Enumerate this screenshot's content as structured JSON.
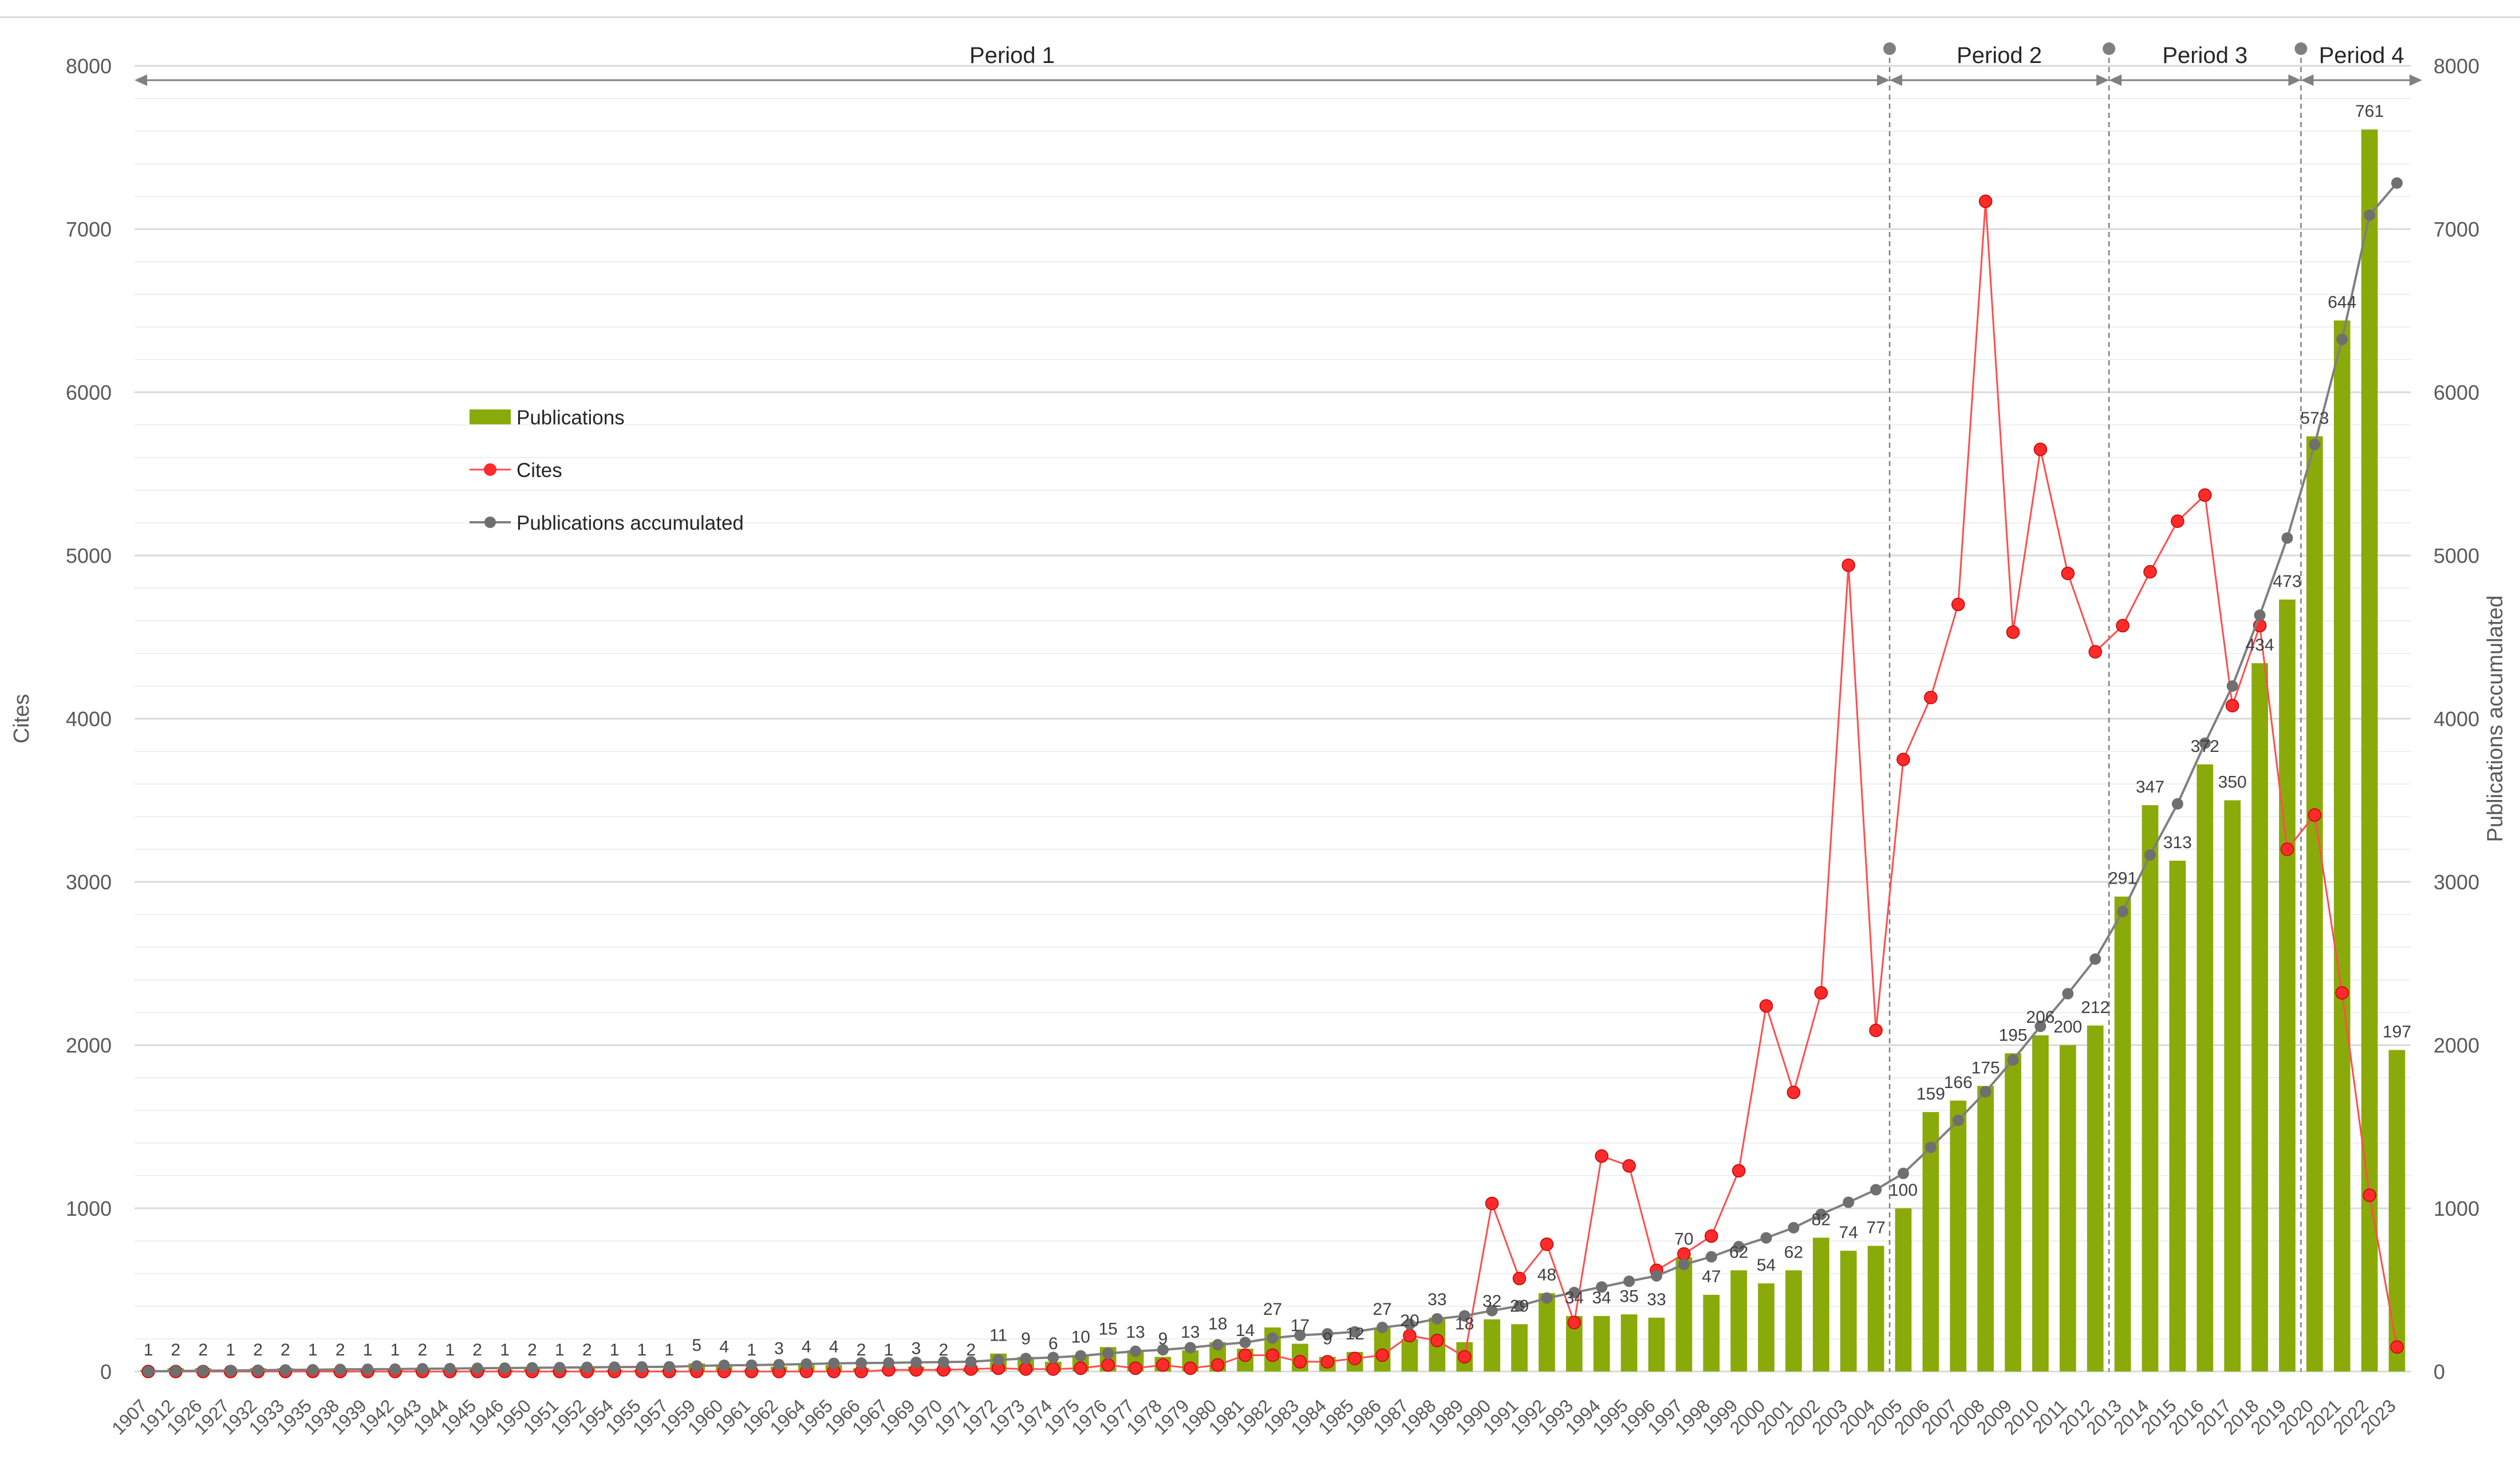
{
  "chart_data": {
    "type": "bar",
    "categories": [
      "1907",
      "1912",
      "1926",
      "1927",
      "1932",
      "1933",
      "1935",
      "1938",
      "1939",
      "1942",
      "1943",
      "1944",
      "1945",
      "1946",
      "1950",
      "1951",
      "1952",
      "1954",
      "1955",
      "1957",
      "1959",
      "1960",
      "1961",
      "1962",
      "1964",
      "1965",
      "1966",
      "1967",
      "1969",
      "1970",
      "1971",
      "1972",
      "1973",
      "1974",
      "1975",
      "1976",
      "1977",
      "1978",
      "1979",
      "1980",
      "1981",
      "1982",
      "1983",
      "1984",
      "1985",
      "1986",
      "1987",
      "1988",
      "1989",
      "1990",
      "1991",
      "1992",
      "1993",
      "1994",
      "1995",
      "1996",
      "1997",
      "1998",
      "1999",
      "2000",
      "2001",
      "2002",
      "2003",
      "2004",
      "2005",
      "2006",
      "2007",
      "2008",
      "2009",
      "2010",
      "2011",
      "2012",
      "2013",
      "2014",
      "2015",
      "2016",
      "2017",
      "2018",
      "2019",
      "2020",
      "2021",
      "2022",
      "2023"
    ],
    "series": [
      {
        "name": "Publications",
        "type": "bar",
        "axis": "left",
        "color": "#8aaa0a",
        "values": [
          1,
          2,
          2,
          1,
          2,
          2,
          1,
          2,
          1,
          1,
          2,
          1,
          2,
          1,
          2,
          1,
          2,
          1,
          1,
          1,
          5,
          4,
          1,
          3,
          4,
          4,
          2,
          1,
          3,
          2,
          2,
          11,
          9,
          6,
          10,
          15,
          13,
          9,
          13,
          18,
          14,
          27,
          17,
          9,
          12,
          27,
          20,
          33,
          18,
          32,
          29,
          48,
          34,
          34,
          35,
          33,
          70,
          47,
          62,
          54,
          62,
          82,
          74,
          77,
          100,
          159,
          166,
          175,
          195,
          206,
          200,
          212,
          291,
          347,
          313,
          372,
          350,
          434,
          473,
          573,
          644,
          761,
          197
        ]
      },
      {
        "name": "Cites",
        "type": "line",
        "axis": "left",
        "color": "#ff2a2a",
        "values": [
          0,
          0,
          0,
          0,
          0,
          0,
          0,
          0,
          0,
          0,
          0,
          0,
          0,
          0,
          0,
          0,
          0,
          0,
          0,
          0,
          0,
          0,
          0,
          0,
          0,
          0,
          0,
          10,
          10,
          10,
          15,
          20,
          15,
          15,
          20,
          40,
          20,
          40,
          20,
          40,
          100,
          100,
          60,
          60,
          80,
          100,
          220,
          190,
          90,
          1030,
          570,
          780,
          300,
          1320,
          1260,
          620,
          720,
          830,
          1230,
          2240,
          1710,
          2320,
          4940,
          2090,
          3750,
          4130,
          4700,
          7170,
          4530,
          5650,
          4890,
          4410,
          4570,
          4900,
          5210,
          5370,
          4080,
          4570,
          3200,
          3410,
          2320,
          1080,
          150
        ]
      },
      {
        "name": "Publications accumulated",
        "type": "line",
        "axis": "right",
        "color": "#7f7f7f",
        "values": [
          1,
          3,
          5,
          6,
          8,
          10,
          11,
          13,
          14,
          15,
          17,
          18,
          20,
          21,
          23,
          24,
          26,
          27,
          28,
          29,
          34,
          38,
          39,
          42,
          46,
          50,
          52,
          53,
          56,
          58,
          60,
          71,
          80,
          86,
          96,
          111,
          124,
          133,
          146,
          164,
          178,
          205,
          222,
          231,
          243,
          270,
          290,
          323,
          341,
          373,
          402,
          450,
          484,
          518,
          553,
          586,
          656,
          703,
          765,
          819,
          881,
          963,
          1037,
          1114,
          1214,
          1373,
          1539,
          1714,
          1909,
          2115,
          2315,
          2527,
          2818,
          3165,
          3478,
          3850,
          4200,
          4634,
          5107,
          5680,
          6324,
          7085,
          7282
        ]
      }
    ],
    "y_left": {
      "label": "Cites",
      "range": [
        0,
        8000
      ],
      "ticks": [
        0,
        1000,
        2000,
        3000,
        4000,
        5000,
        6000,
        7000,
        8000
      ]
    },
    "y_right": {
      "label": "Publications accumulated",
      "range": [
        0,
        8000
      ],
      "ticks": [
        0,
        1000,
        2000,
        3000,
        4000,
        5000,
        6000,
        7000,
        8000
      ]
    },
    "periods": [
      {
        "label": "Period 1",
        "start": "1907",
        "end": "2004"
      },
      {
        "label": "Period 2",
        "start": "2004",
        "end": "2012"
      },
      {
        "label": "Period 3",
        "start": "2012",
        "end": "2019"
      },
      {
        "label": "Period 4",
        "start": "2019",
        "end": "2023"
      }
    ],
    "legend": {
      "placement": "upper-left",
      "items": [
        "Publications",
        "Cites",
        "Publications accumulated"
      ]
    },
    "grid": true,
    "bar_labels": true
  }
}
